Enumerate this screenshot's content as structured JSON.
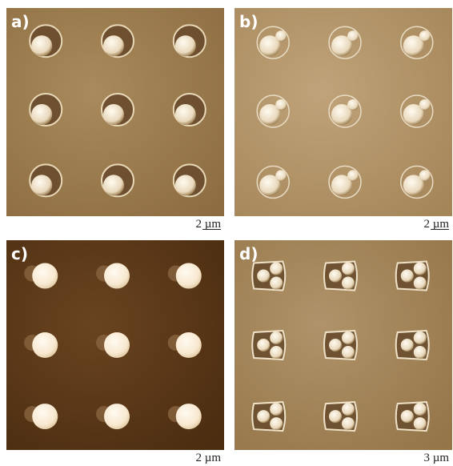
{
  "panels": [
    {
      "label": "a)",
      "scale": "2 µm"
    },
    {
      "label": "b)",
      "scale": "2 µm"
    },
    {
      "label": "c)",
      "scale": "2 µm"
    },
    {
      "label": "d)",
      "scale": "3 µm"
    }
  ]
}
